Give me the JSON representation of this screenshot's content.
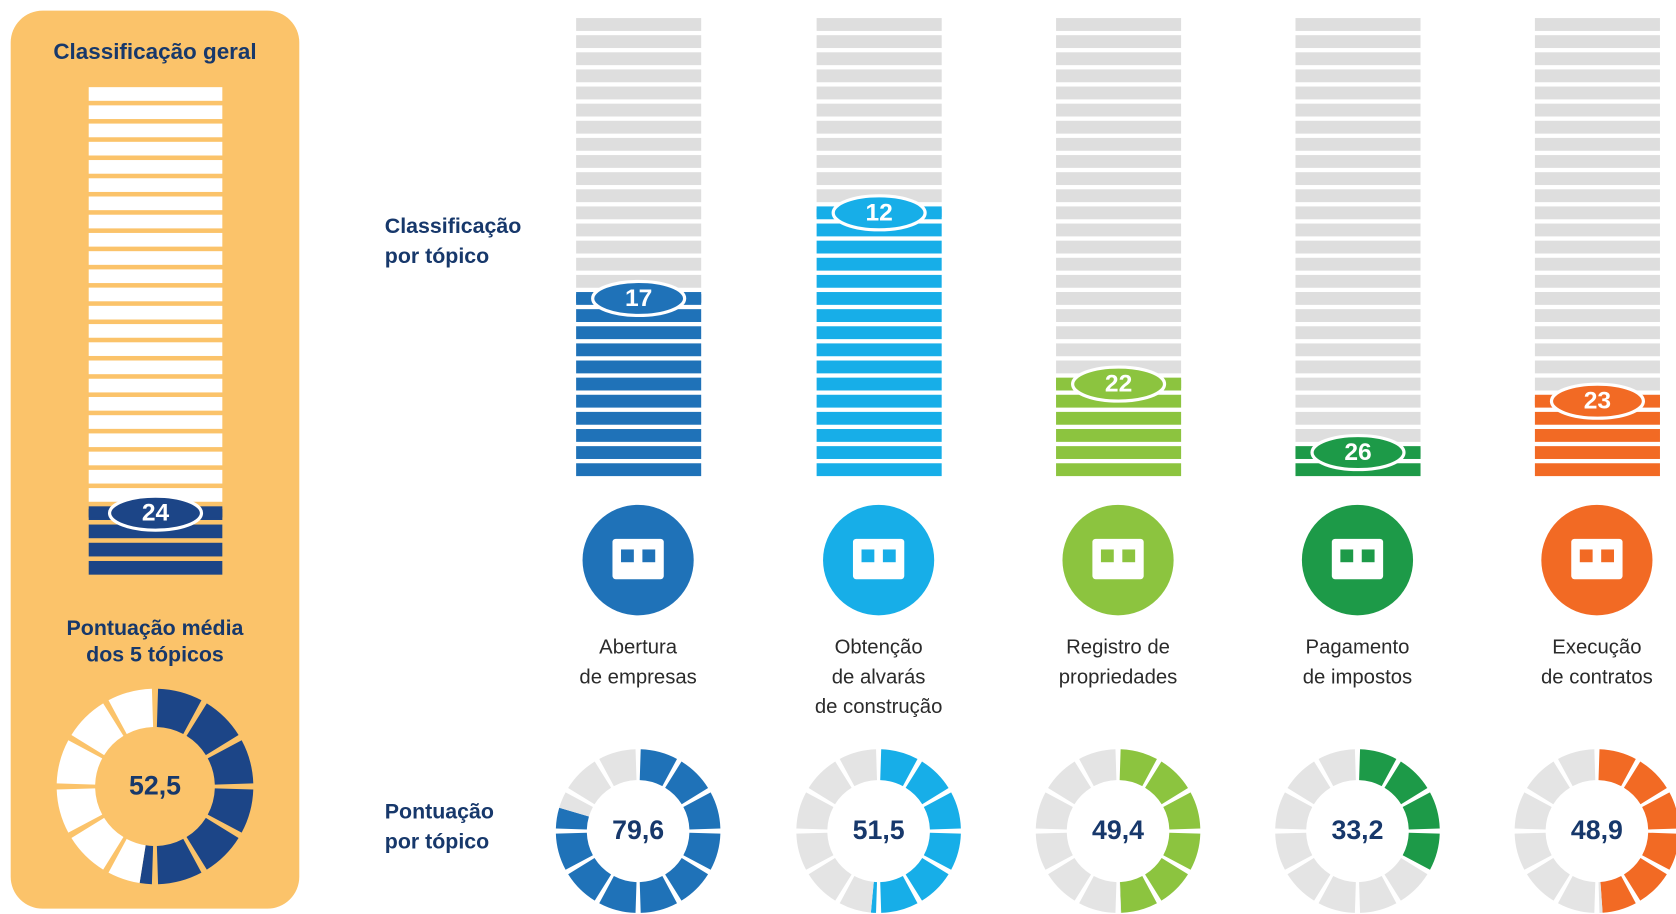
{
  "overall": {
    "title": "Classificação geral",
    "rank": 24,
    "score_title": [
      "Pontuação média",
      "dos 5 tópicos"
    ],
    "score": {
      "value": 52.5,
      "label": "52,5"
    },
    "color": "#1c4587"
  },
  "rank_heading": [
    "Classificação",
    "por tópico"
  ],
  "score_heading": [
    "Pontuação",
    "por tópico"
  ],
  "topics": [
    {
      "name": [
        "Abertura",
        "de empresas"
      ],
      "rank": 17,
      "score": {
        "value": 79.6,
        "label": "79,6"
      },
      "color": "#1f72b8"
    },
    {
      "name": [
        "Obtenção",
        "de alvarás",
        "de construção"
      ],
      "rank": 12,
      "score": {
        "value": 51.5,
        "label": "51,5"
      },
      "color": "#17aee8"
    },
    {
      "name": [
        "Registro de",
        "propriedades"
      ],
      "rank": 22,
      "score": {
        "value": 49.4,
        "label": "49,4"
      },
      "color": "#8cc43f"
    },
    {
      "name": [
        "Pagamento",
        "de impostos"
      ],
      "rank": 26,
      "score": {
        "value": 33.2,
        "label": "33,2"
      },
      "color": "#1d9a48"
    },
    {
      "name": [
        "Execução",
        "de contratos"
      ],
      "rank": 23,
      "score": {
        "value": 48.9,
        "label": "48,9"
      },
      "color": "#f26a24"
    }
  ]
}
